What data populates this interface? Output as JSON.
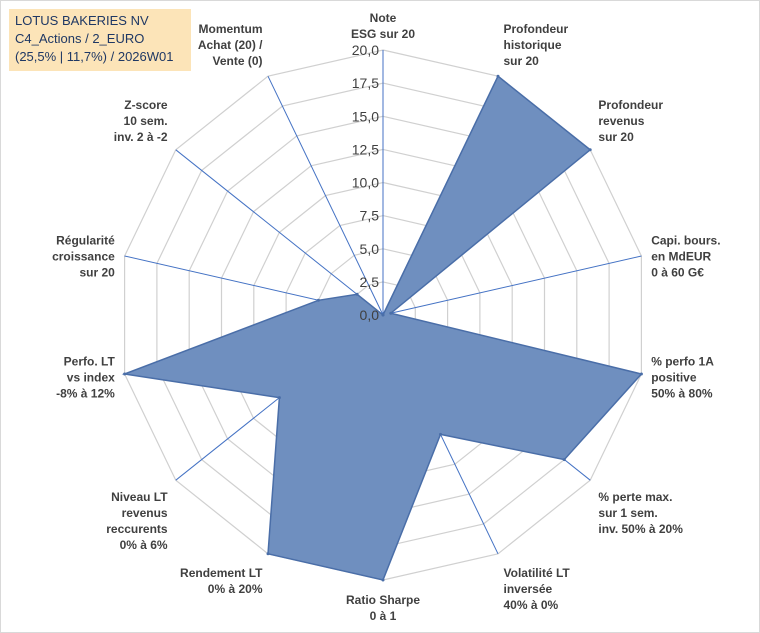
{
  "header": {
    "line1": "LOTUS BAKERIES NV",
    "line2": "C4_Actions / 2_EURO",
    "line3": "(25,5% | 11,7%) / 2026W01"
  },
  "colors": {
    "fill": "#6f8fbf",
    "stroke": "#4a6ea8",
    "grid": "#d0d0d0",
    "spoke": "#4472c4",
    "title_bg": "#fce4b8"
  },
  "chart_data": {
    "type": "radar",
    "rmin": 0,
    "rmax": 20,
    "ticks": [
      "0,0",
      "2,5",
      "5,0",
      "7,5",
      "10,0",
      "12,5",
      "15,0",
      "17,5",
      "20,0"
    ],
    "grid": true,
    "axes": [
      {
        "label": [
          "Note",
          "ESG sur 20"
        ],
        "value": 0
      },
      {
        "label": [
          "Profondeur",
          "historique",
          "sur 20"
        ],
        "value": 20
      },
      {
        "label": [
          "Profondeur",
          "revenus",
          "sur 20"
        ],
        "value": 20
      },
      {
        "label": [
          "Capi. bours.",
          "en MdEUR",
          "0 à 60 G€"
        ],
        "value": 0.6
      },
      {
        "label": [
          "% perfo 1A",
          "positive",
          "50% à 80%"
        ],
        "value": 20
      },
      {
        "label": [
          "% perte max.",
          "sur 1 sem.",
          "inv. 50% à 20%"
        ],
        "value": 17.5
      },
      {
        "label": [
          "Volatilité LT",
          "inversée",
          "40% à 0%"
        ],
        "value": 10
      },
      {
        "label": [
          "Ratio Sharpe",
          "0 à 1"
        ],
        "value": 20
      },
      {
        "label": [
          "Rendement LT",
          "0% à 20%"
        ],
        "value": 20
      },
      {
        "label": [
          "Niveau LT",
          "revenus",
          "reccurents",
          "0% à 6%"
        ],
        "value": 10
      },
      {
        "label": [
          "Perfo. LT",
          "vs index",
          "-8% à 12%"
        ],
        "value": 20
      },
      {
        "label": [
          "Régularité",
          "croissance",
          "sur 20"
        ],
        "value": 5
      },
      {
        "label": [
          "Z-score",
          "10 sem.",
          "inv. 2 à -2"
        ],
        "value": 2.5
      },
      {
        "label": [
          "Momentum",
          "Achat (20) /",
          "Vente (0)"
        ],
        "value": 0
      }
    ]
  }
}
